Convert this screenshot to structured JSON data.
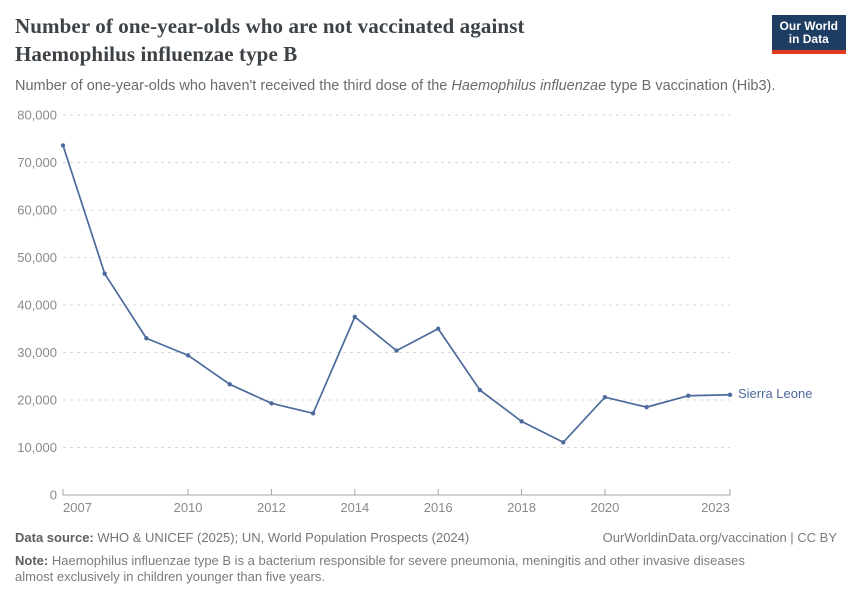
{
  "header": {
    "title": "Number of one-year-olds who are not vaccinated against Haemophilus influenzae type B",
    "subtitle_pre": "Number of one-year-olds who haven't received the third dose of the ",
    "subtitle_italic": "Haemophilus influenzae",
    "subtitle_post": " type B vaccination (Hib3)."
  },
  "logo": {
    "line1": "Our World",
    "line2": "in Data"
  },
  "chart_data": {
    "type": "line",
    "title": "Number of one-year-olds who are not vaccinated against Haemophilus influenzae type B",
    "xlabel": "",
    "ylabel": "",
    "x": [
      2007,
      2008,
      2009,
      2010,
      2011,
      2012,
      2013,
      2014,
      2015,
      2016,
      2017,
      2018,
      2019,
      2020,
      2021,
      2022,
      2023
    ],
    "series": [
      {
        "name": "Sierra Leone",
        "color": "#4c6a9c",
        "values": [
          73600,
          46600,
          33000,
          29400,
          23300,
          19300,
          17200,
          37500,
          30400,
          35000,
          22100,
          15500,
          11100,
          20600,
          18500,
          20900,
          21100
        ]
      }
    ],
    "ylim": [
      0,
      80000
    ],
    "ytick_step": 10000,
    "yticks": [
      0,
      10000,
      20000,
      30000,
      40000,
      50000,
      60000,
      70000,
      80000
    ],
    "xticks": [
      2007,
      2010,
      2012,
      2014,
      2016,
      2018,
      2020,
      2023
    ],
    "grid": "horizontal-dashed",
    "legend_position": "end-of-line-label"
  },
  "colors": {
    "line": "#4c6a9c",
    "grid": "#d9d9d9",
    "axis": "#a6a6a6",
    "tick_label": "#8a8a8a",
    "logo_bg": "#1d3d63",
    "logo_accent": "#dc3a1f"
  },
  "footer": {
    "data_source_label": "Data source:",
    "data_source_text": "WHO & UNICEF (2025); UN, World Population Prospects (2024)",
    "attribution": "OurWorldinData.org/vaccination | CC BY",
    "note_label": "Note:",
    "note_text": "Haemophilus influenzae type B is a bacterium responsible for severe pneumonia, meningitis and other invasive diseases almost exclusively in children younger than five years."
  }
}
